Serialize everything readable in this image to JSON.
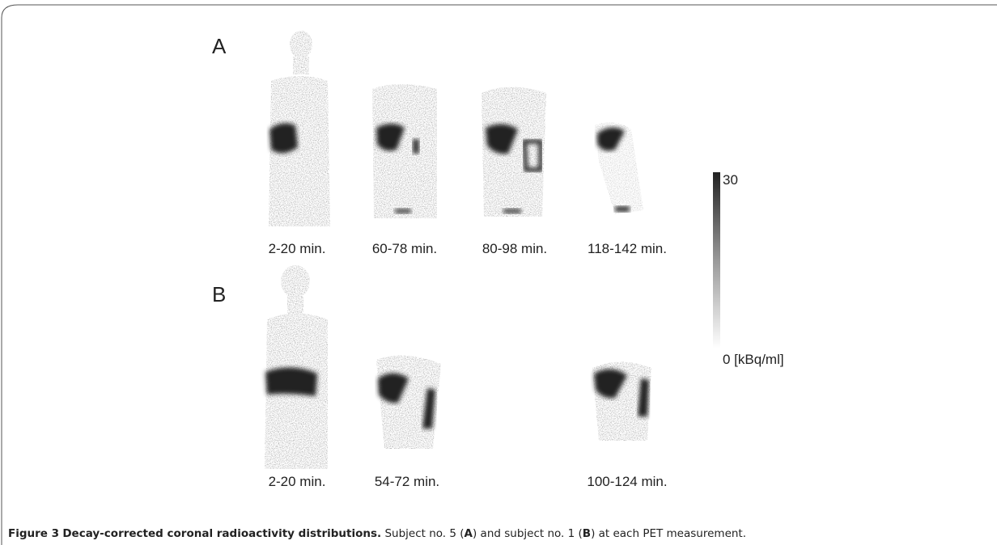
{
  "figure": {
    "panels": [
      {
        "label": "A",
        "times": [
          "2-20 min.",
          "60-78 min.",
          "80-98 min.",
          "118-142 min."
        ]
      },
      {
        "label": "B",
        "times": [
          "2-20 min.",
          "54-72 min.",
          "100-124 min."
        ]
      }
    ],
    "colorbar": {
      "max_label": "30",
      "min_label": "0 [kBq/ml]"
    },
    "caption": {
      "label": "Figure 3",
      "title": "Decay-corrected coronal radioactivity distributions.",
      "text_parts": [
        "Subject no. 5 (",
        "A",
        ") and subject no. 1 (",
        "B",
        ") at each PET measurement."
      ]
    }
  }
}
